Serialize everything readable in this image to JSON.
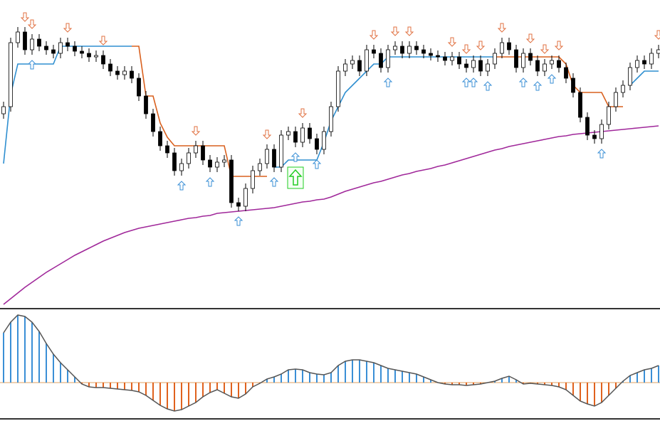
{
  "chart_data": [
    {
      "type": "candlestick",
      "ylim": [
        0,
        433
      ],
      "open": [
        273,
        283,
        373,
        388,
        363,
        378,
        368,
        363,
        358,
        373,
        368,
        361,
        358,
        353,
        355,
        343,
        333,
        328,
        333,
        323,
        298,
        273,
        248,
        228,
        218,
        193,
        203,
        218,
        228,
        208,
        198,
        205,
        208,
        148,
        143,
        168,
        193,
        203,
        223,
        198,
        243,
        248,
        233,
        253,
        238,
        223,
        248,
        283,
        333,
        343,
        348,
        333,
        363,
        358,
        338,
        363,
        368,
        358,
        368,
        363,
        358,
        355,
        353,
        348,
        353,
        343,
        338,
        348,
        333,
        343,
        358,
        373,
        363,
        338,
        358,
        348,
        333,
        343,
        348,
        338,
        323,
        303,
        268,
        243,
        238,
        258,
        283,
        303,
        313,
        338,
        348,
        343,
        358
      ],
      "high": [
        290,
        380,
        395,
        395,
        385,
        385,
        375,
        370,
        380,
        380,
        375,
        368,
        365,
        362,
        362,
        350,
        340,
        340,
        340,
        330,
        305,
        280,
        255,
        235,
        225,
        210,
        225,
        235,
        235,
        215,
        212,
        215,
        215,
        155,
        175,
        200,
        210,
        230,
        230,
        250,
        255,
        255,
        260,
        260,
        245,
        255,
        290,
        340,
        350,
        355,
        355,
        370,
        370,
        365,
        370,
        375,
        375,
        375,
        375,
        370,
        365,
        362,
        360,
        360,
        360,
        350,
        355,
        355,
        350,
        365,
        380,
        380,
        370,
        365,
        365,
        355,
        350,
        355,
        355,
        345,
        330,
        310,
        275,
        250,
        265,
        290,
        310,
        320,
        345,
        355,
        355,
        365,
        370
      ],
      "low": [
        266,
        276,
        366,
        356,
        356,
        361,
        356,
        351,
        351,
        361,
        354,
        351,
        346,
        346,
        336,
        326,
        321,
        321,
        316,
        291,
        266,
        241,
        221,
        211,
        186,
        186,
        196,
        211,
        201,
        191,
        191,
        198,
        141,
        136,
        136,
        161,
        186,
        196,
        191,
        191,
        236,
        226,
        226,
        231,
        216,
        216,
        241,
        276,
        326,
        336,
        326,
        326,
        351,
        331,
        331,
        356,
        351,
        351,
        356,
        351,
        348,
        346,
        341,
        341,
        336,
        331,
        331,
        326,
        326,
        336,
        351,
        356,
        331,
        331,
        341,
        326,
        326,
        336,
        331,
        316,
        296,
        261,
        236,
        231,
        231,
        251,
        276,
        296,
        306,
        331,
        336,
        336,
        351
      ],
      "close": [
        283,
        373,
        388,
        363,
        378,
        368,
        363,
        358,
        373,
        368,
        361,
        358,
        353,
        355,
        343,
        333,
        328,
        333,
        323,
        298,
        273,
        248,
        228,
        218,
        193,
        203,
        218,
        228,
        208,
        198,
        205,
        208,
        148,
        143,
        168,
        193,
        203,
        223,
        198,
        243,
        248,
        233,
        253,
        238,
        223,
        248,
        283,
        333,
        343,
        348,
        333,
        363,
        358,
        338,
        363,
        368,
        358,
        368,
        363,
        358,
        355,
        353,
        348,
        353,
        343,
        338,
        348,
        333,
        343,
        358,
        373,
        363,
        338,
        358,
        348,
        333,
        343,
        348,
        338,
        323,
        303,
        268,
        243,
        238,
        258,
        283,
        303,
        313,
        338,
        348,
        343,
        358,
        363
      ],
      "lines": [
        {
          "color": "#a0289a",
          "values": [
            5,
            13,
            21,
            29,
            36,
            43,
            50,
            56,
            62,
            68,
            74,
            79,
            84,
            89,
            94,
            98,
            102,
            106,
            109,
            112,
            114,
            116,
            118,
            120,
            122,
            124,
            126,
            127,
            129,
            130,
            133,
            134,
            135,
            136,
            137,
            138,
            139,
            140,
            141,
            143,
            145,
            147,
            149,
            150,
            152,
            153,
            156,
            160,
            164,
            167,
            170,
            173,
            176,
            178,
            181,
            184,
            187,
            189,
            192,
            194,
            196,
            199,
            201,
            204,
            207,
            210,
            213,
            216,
            219,
            222,
            224,
            227,
            229,
            231,
            233,
            235,
            237,
            239,
            241,
            242,
            244,
            245,
            246,
            247,
            248,
            249,
            250,
            251,
            252,
            253,
            254,
            255,
            256
          ]
        },
        {
          "color": "#2f8fd0",
          "values": [
            203,
            300,
            343,
            343,
            343,
            343,
            343,
            343,
            368,
            368,
            368,
            368,
            368,
            368,
            368,
            368,
            368,
            368,
            368,
            null,
            null,
            null,
            null,
            null,
            null,
            null,
            null,
            null,
            null,
            null,
            null,
            null,
            null,
            null,
            null,
            null,
            null,
            null,
            198,
            198,
            208,
            208,
            208,
            208,
            208,
            233,
            263,
            283,
            303,
            313,
            323,
            333,
            343,
            343,
            353,
            353,
            353,
            353,
            353,
            353,
            353,
            353,
            353,
            353,
            353,
            353,
            353,
            353,
            353,
            353,
            null,
            null,
            null,
            null,
            null,
            null,
            null,
            null,
            null,
            null,
            null,
            null,
            null,
            null,
            null,
            null,
            null,
            null,
            313,
            323,
            333,
            333,
            333
          ]
        },
        {
          "color": "#d9601e",
          "values": [
            null,
            null,
            null,
            null,
            null,
            null,
            null,
            null,
            null,
            null,
            null,
            null,
            null,
            null,
            null,
            null,
            null,
            null,
            368,
            368,
            298,
            298,
            260,
            240,
            228,
            228,
            228,
            228,
            228,
            228,
            228,
            228,
            185,
            185,
            185,
            185,
            185,
            185,
            null,
            null,
            null,
            null,
            null,
            null,
            null,
            null,
            null,
            null,
            null,
            null,
            null,
            null,
            null,
            null,
            null,
            null,
            null,
            null,
            null,
            null,
            null,
            null,
            null,
            null,
            null,
            null,
            null,
            null,
            null,
            353,
            353,
            353,
            353,
            353,
            353,
            353,
            353,
            353,
            353,
            343,
            313,
            303,
            303,
            303,
            303,
            283,
            283,
            283,
            null,
            null,
            null,
            null,
            null
          ]
        }
      ],
      "signals_up": [
        4,
        25,
        29,
        33,
        38,
        41,
        44,
        54,
        65,
        66,
        68,
        73,
        75,
        77,
        84
      ],
      "signals_down": [
        3,
        4,
        9,
        14,
        27,
        37,
        42,
        52,
        55,
        57,
        63,
        65,
        67,
        70,
        74,
        76,
        78,
        92
      ],
      "up_color": "#3a8fd6",
      "down_color": "#e07040",
      "highlight": 41,
      "highlight_color": "#22cc22"
    },
    {
      "type": "bar",
      "ylim": [
        -50,
        102
      ],
      "color_up": "#3a8fd6",
      "color_down": "#e0621e",
      "line_color": "#555555",
      "values": [
        70,
        85,
        95,
        93,
        85,
        72,
        55,
        40,
        28,
        18,
        8,
        -2,
        -6,
        -7,
        -7,
        -8,
        -9,
        -10,
        -11,
        -13,
        -18,
        -25,
        -32,
        -37,
        -40,
        -38,
        -33,
        -28,
        -20,
        -14,
        -10,
        -15,
        -20,
        -22,
        -16,
        -6,
        -1,
        5,
        8,
        12,
        18,
        19,
        18,
        14,
        12,
        11,
        14,
        24,
        30,
        32,
        32,
        30,
        28,
        24,
        20,
        18,
        16,
        14,
        12,
        8,
        4,
        0,
        -2,
        -3,
        -3,
        -4,
        -3,
        -2,
        0,
        2,
        6,
        9,
        4,
        -2,
        -1,
        -2,
        -3,
        -4,
        -6,
        -10,
        -18,
        -26,
        -30,
        -33,
        -28,
        -18,
        -8,
        2,
        10,
        14,
        18,
        20,
        24
      ]
    }
  ]
}
